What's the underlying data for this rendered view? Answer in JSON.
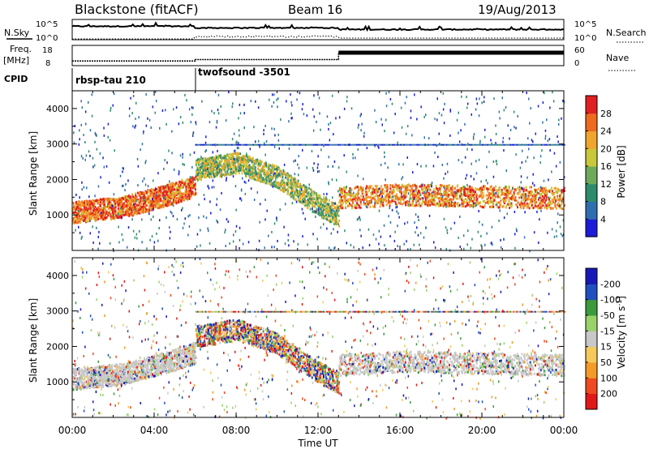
{
  "header": {
    "site": "Blackstone (fitACF)",
    "beam": "Beam 16",
    "date": "19/Aug/2013"
  },
  "side_labels": {
    "nsky": "N.Sky",
    "freq": "Freq.",
    "freq_unit": "[MHz]",
    "cpid": "CPID",
    "nsearch": "N.Search",
    "nave": "Nave"
  },
  "cpid_labels": [
    "rbsp-tau 210",
    "twofsound -3501"
  ],
  "chart_data": [
    {
      "type": "line",
      "panel": "noise",
      "left_axis": {
        "ticks": [
          "10^5",
          "10^0"
        ]
      },
      "right_axis": {
        "ticks": [
          "10^5",
          "10^0"
        ]
      },
      "series": [
        {
          "name": "N.Sky",
          "style": "solid"
        },
        {
          "name": "N.Search",
          "style": "dotted"
        }
      ]
    },
    {
      "type": "line",
      "panel": "frequency",
      "left_axis": {
        "ticks": [
          "18",
          "8"
        ]
      },
      "right_axis": {
        "ticks": [
          "60",
          "0"
        ]
      },
      "series": [
        {
          "name": "Freq.",
          "x": [
            0,
            6,
            6,
            13,
            13,
            24
          ],
          "y": [
            9.5,
            9.5,
            10.5,
            10.5,
            15,
            15
          ]
        },
        {
          "name": "Nave",
          "style": "dotted"
        }
      ],
      "cpid_change_hours": [
        0,
        6
      ]
    },
    {
      "type": "heatmap",
      "panel": "power",
      "xlabel": "",
      "ylabel": "Slant Range [km]",
      "x_range": [
        0,
        24
      ],
      "y_range": [
        0,
        4500
      ],
      "yticks": [
        1000,
        2000,
        3000,
        4000
      ],
      "colorbar": {
        "label": "Power [dB]",
        "ticks": [
          4,
          8,
          12,
          16,
          20,
          24,
          28
        ],
        "range": [
          0,
          32
        ],
        "colors": [
          "#1c1cd8",
          "#2f6fb0",
          "#2e8b6e",
          "#6fa95a",
          "#c9c73a",
          "#f0a52c",
          "#ee6a1f",
          "#e02020"
        ]
      },
      "bands": [
        {
          "x": [
            0,
            2.5,
            5,
            6
          ],
          "y": [
            1100,
            1250,
            1650,
            1850
          ],
          "level": 24
        },
        {
          "x": [
            6,
            8,
            10,
            12,
            13
          ],
          "y": [
            2300,
            2500,
            2100,
            1300,
            1000
          ],
          "level": 14
        },
        {
          "x": [
            13,
            16,
            20,
            24
          ],
          "y": [
            1500,
            1600,
            1550,
            1500
          ],
          "level": 22
        }
      ]
    },
    {
      "type": "heatmap",
      "panel": "velocity",
      "xlabel": "Time UT",
      "ylabel": "Slant Range [km]",
      "x_range": [
        0,
        24
      ],
      "y_range": [
        0,
        4500
      ],
      "yticks": [
        1000,
        2000,
        3000,
        4000
      ],
      "xticks": [
        "00:00",
        "04:00",
        "08:00",
        "12:00",
        "16:00",
        "20:00",
        "00:00"
      ],
      "colorbar": {
        "label": "Velocity [m s-1]",
        "label_main": "Velocity [m s",
        "label_sup": "-1",
        "label_end": "]",
        "ticks": [
          -200,
          -100,
          -50,
          -15,
          15,
          50,
          100,
          200
        ],
        "colors": [
          "#e01818",
          "#f04a20",
          "#f39a28",
          "#f5c95a",
          "#c8c8c8",
          "#9ad26a",
          "#3c9a3c",
          "#2050c0",
          "#1818b8"
        ]
      },
      "bands": [
        {
          "x": [
            0,
            2.5,
            5,
            6
          ],
          "y": [
            1100,
            1250,
            1650,
            1850
          ],
          "level": "grey"
        },
        {
          "x": [
            6,
            8,
            10,
            12,
            13
          ],
          "y": [
            2300,
            2500,
            2100,
            1300,
            1000
          ],
          "level": "mixed"
        },
        {
          "x": [
            13,
            16,
            20,
            24
          ],
          "y": [
            1500,
            1600,
            1550,
            1500
          ],
          "level": "grey"
        }
      ]
    }
  ]
}
